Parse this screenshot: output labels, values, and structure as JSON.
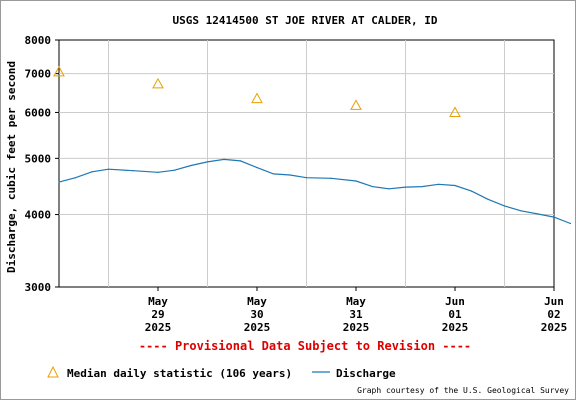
{
  "chart_data": {
    "type": "line",
    "title": "USGS 12414500 ST JOE RIVER AT CALDER, ID",
    "ylabel": "Discharge, cubic feet per second",
    "xlabel": "",
    "y_scale": "log",
    "ylim": [
      3000,
      8000
    ],
    "y_ticks": [
      3000,
      4000,
      5000,
      6000,
      7000,
      8000
    ],
    "y_tick_labels": [
      "3000",
      "4000",
      "5000",
      "6000",
      "7000",
      "8000"
    ],
    "x_ticks": [
      {
        "month": "May",
        "day": "29",
        "year": "2025"
      },
      {
        "month": "May",
        "day": "30",
        "year": "2025"
      },
      {
        "month": "May",
        "day": "31",
        "year": "2025"
      },
      {
        "month": "Jun",
        "day": "01",
        "year": "2025"
      },
      {
        "month": "Jun",
        "day": "02",
        "year": "2025"
      }
    ],
    "grid": true,
    "series": [
      {
        "name": "Discharge",
        "kind": "line",
        "color": "#1f77b4",
        "points": [
          {
            "date": "2025-05-28 12:00",
            "value": 4550
          },
          {
            "date": "2025-05-28 16:00",
            "value": 4630
          },
          {
            "date": "2025-05-28 20:00",
            "value": 4740
          },
          {
            "date": "2025-05-29 00:00",
            "value": 4790
          },
          {
            "date": "2025-05-29 06:00",
            "value": 4760
          },
          {
            "date": "2025-05-29 12:00",
            "value": 4730
          },
          {
            "date": "2025-05-29 16:00",
            "value": 4770
          },
          {
            "date": "2025-05-29 20:00",
            "value": 4860
          },
          {
            "date": "2025-05-30 00:00",
            "value": 4930
          },
          {
            "date": "2025-05-30 04:00",
            "value": 4980
          },
          {
            "date": "2025-05-30 08:00",
            "value": 4950
          },
          {
            "date": "2025-05-30 12:00",
            "value": 4820
          },
          {
            "date": "2025-05-30 16:00",
            "value": 4700
          },
          {
            "date": "2025-05-30 20:00",
            "value": 4680
          },
          {
            "date": "2025-05-31 00:00",
            "value": 4630
          },
          {
            "date": "2025-05-31 06:00",
            "value": 4620
          },
          {
            "date": "2025-05-31 12:00",
            "value": 4570
          },
          {
            "date": "2025-05-31 16:00",
            "value": 4470
          },
          {
            "date": "2025-05-31 20:00",
            "value": 4430
          },
          {
            "date": "2025-06-01 00:00",
            "value": 4460
          },
          {
            "date": "2025-06-01 04:00",
            "value": 4470
          },
          {
            "date": "2025-06-01 08:00",
            "value": 4510
          },
          {
            "date": "2025-06-01 12:00",
            "value": 4490
          },
          {
            "date": "2025-06-01 16:00",
            "value": 4390
          },
          {
            "date": "2025-06-01 20:00",
            "value": 4250
          },
          {
            "date": "2025-06-02 00:00",
            "value": 4140
          },
          {
            "date": "2025-06-02 04:00",
            "value": 4060
          },
          {
            "date": "2025-06-02 08:00",
            "value": 4010
          },
          {
            "date": "2025-06-02 12:00",
            "value": 3960
          },
          {
            "date": "2025-06-02 16:00",
            "value": 3860
          }
        ]
      },
      {
        "name": "Median daily statistic (106 years)",
        "kind": "marker",
        "marker": "triangle",
        "color": "#e8a000",
        "points": [
          {
            "date": "2025-05-28 12:00",
            "value": 7050
          },
          {
            "date": "2025-05-29 12:00",
            "value": 6720
          },
          {
            "date": "2025-05-30 12:00",
            "value": 6340
          },
          {
            "date": "2025-05-31 12:00",
            "value": 6170
          },
          {
            "date": "2025-06-01 12:00",
            "value": 6000
          }
        ]
      }
    ],
    "legend_position": "bottom-left"
  },
  "notice": "---- Provisional Data Subject to Revision ----",
  "credit": "Graph courtesy of the U.S. Geological Survey",
  "colors": {
    "frame": "#9a9a9a",
    "grid": "#cccccc",
    "notice": "#dd0000"
  }
}
